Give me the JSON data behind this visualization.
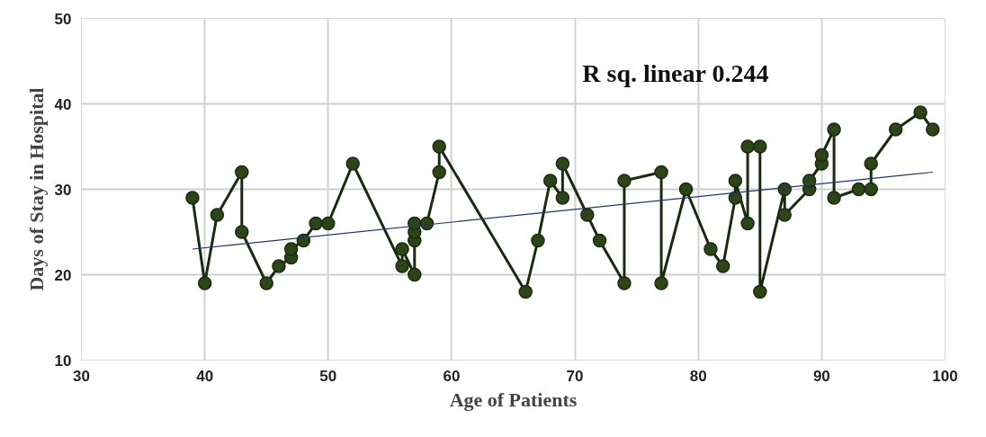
{
  "chart_data": {
    "type": "line",
    "xlabel": "Age of Patients",
    "ylabel": "Days of Stay in Hospital",
    "annotations": [
      "R sq. linear 0.244"
    ],
    "xlim": [
      30,
      100
    ],
    "xticks": [
      30,
      40,
      50,
      60,
      70,
      80,
      90,
      100
    ],
    "ylim": [
      10,
      50
    ],
    "yticks": [
      10,
      20,
      30,
      40,
      50
    ],
    "grid": true,
    "series": [
      {
        "marker": "circle",
        "color": "#2b4418",
        "x": [
          39,
          40,
          41,
          43,
          43,
          45,
          46,
          47,
          47,
          48,
          49,
          50,
          52,
          56,
          56,
          57,
          57,
          57,
          57,
          58,
          59,
          59,
          66,
          67,
          68,
          69,
          69,
          71,
          72,
          74,
          74,
          77,
          77,
          79,
          81,
          82,
          83,
          83,
          84,
          84,
          85,
          85,
          87,
          87,
          89,
          89,
          90,
          90,
          91,
          91,
          93,
          94,
          94,
          96,
          98,
          99
        ],
        "values": [
          29,
          19,
          27,
          32,
          25,
          19,
          21,
          22,
          23,
          24,
          26,
          26,
          33,
          21,
          23,
          20,
          24,
          25,
          26,
          26,
          32,
          35,
          18,
          24,
          31,
          29,
          33,
          27,
          24,
          19,
          31,
          32,
          19,
          30,
          23,
          21,
          29,
          31,
          26,
          35,
          35,
          18,
          30,
          27,
          30,
          31,
          33,
          34,
          37,
          29,
          30,
          30,
          33,
          37,
          39,
          37
        ]
      },
      {
        "marker": "none",
        "color": "#1f3864",
        "x": [
          39,
          99
        ],
        "values": [
          23,
          32
        ]
      }
    ]
  }
}
